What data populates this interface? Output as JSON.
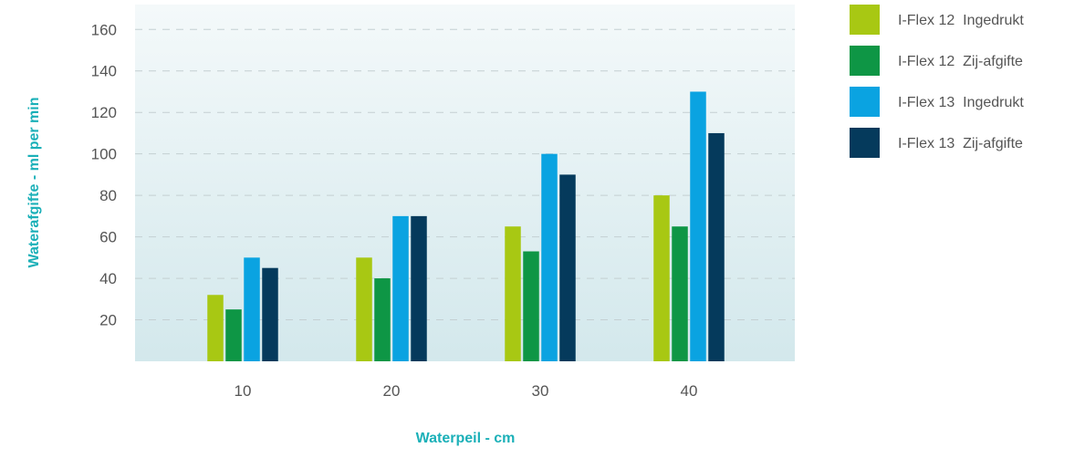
{
  "chart_data": {
    "type": "bar",
    "xlabel": "Waterpeil - cm",
    "ylabel": "Waterafgifte - ml per min",
    "categories": [
      "10",
      "20",
      "30",
      "40"
    ],
    "series": [
      {
        "name": "I-Flex 12  Ingedrukt",
        "color": "#a8c813",
        "values": [
          32,
          50,
          65,
          80
        ]
      },
      {
        "name": "I-Flex 12  Zij-afgifte",
        "color": "#0e9645",
        "values": [
          25,
          40,
          53,
          65
        ]
      },
      {
        "name": "I-Flex 13  Ingedrukt",
        "color": "#0aa3e1",
        "values": [
          50,
          70,
          100,
          130
        ]
      },
      {
        "name": "I-Flex 13  Zij-afgifte",
        "color": "#053a5c",
        "values": [
          45,
          70,
          90,
          110
        ]
      }
    ],
    "yticks": [
      20,
      40,
      60,
      80,
      100,
      120,
      140,
      160
    ],
    "ylim": [
      0,
      172
    ],
    "grid": true,
    "legend_position": "right"
  }
}
